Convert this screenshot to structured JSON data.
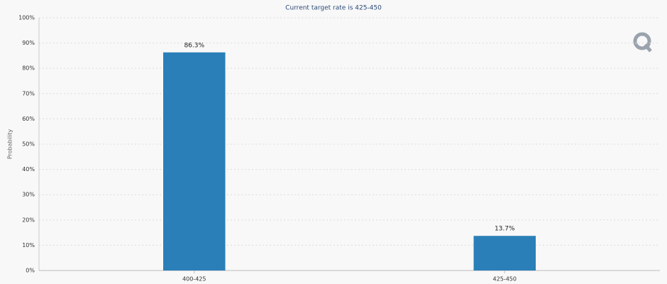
{
  "chart_data": {
    "type": "bar",
    "title": "Current target rate is 425-450",
    "y_label": "Probability",
    "categories": [
      "400-425",
      "425-450"
    ],
    "values": [
      86.3,
      13.7
    ],
    "value_labels": [
      "86.3%",
      "13.7%"
    ],
    "color": "#2a7fb8",
    "ylim": [
      0,
      100
    ],
    "yticks": [
      {
        "value": 0,
        "label": "0%"
      },
      {
        "value": 10,
        "label": "10%"
      },
      {
        "value": 20,
        "label": "20%"
      },
      {
        "value": 30,
        "label": "30%"
      },
      {
        "value": 40,
        "label": "40%"
      },
      {
        "value": 50,
        "label": "50%"
      },
      {
        "value": 60,
        "label": "60%"
      },
      {
        "value": 70,
        "label": "70%"
      },
      {
        "value": 80,
        "label": "80%"
      },
      {
        "value": 90,
        "label": "90%"
      },
      {
        "value": 100,
        "label": "100%"
      }
    ],
    "grid": true
  }
}
